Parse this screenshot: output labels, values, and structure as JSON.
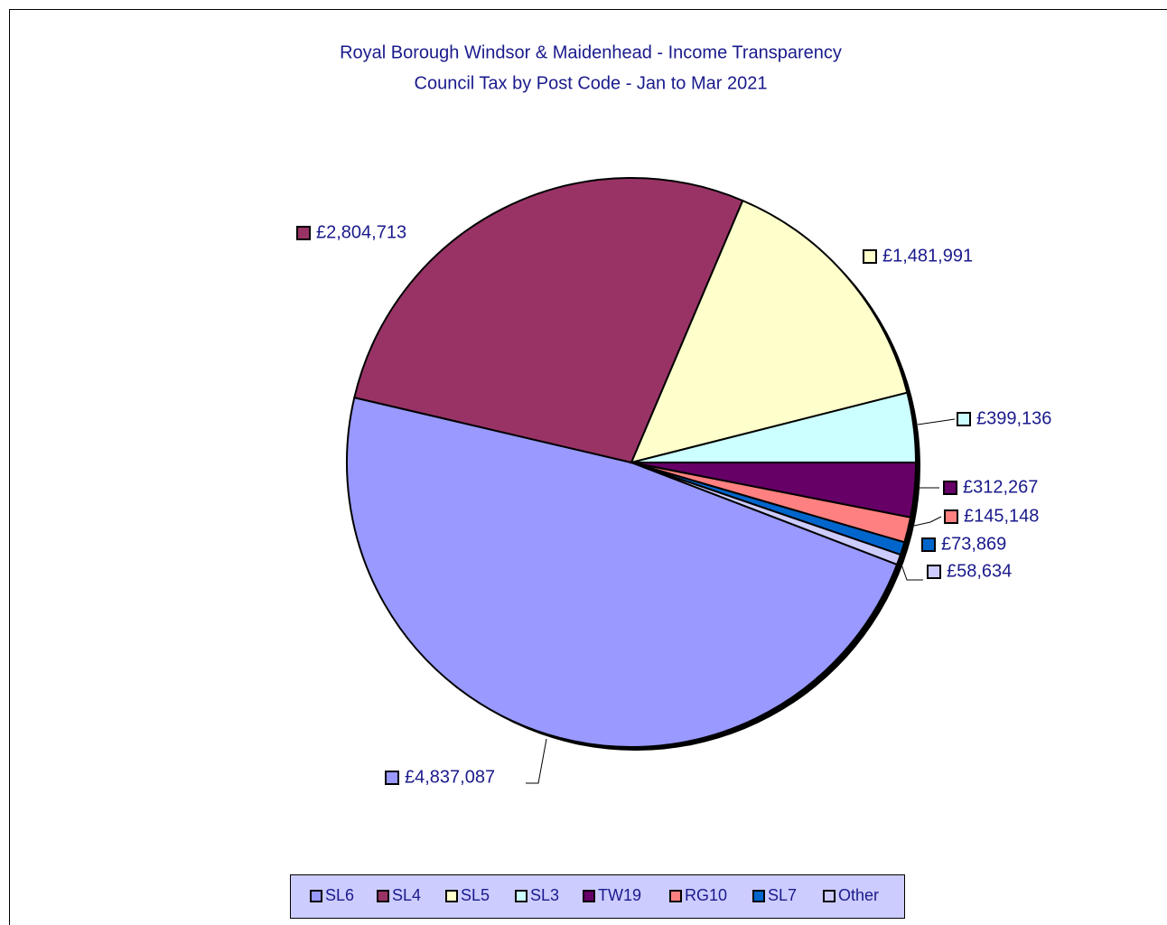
{
  "chart_data": {
    "type": "pie",
    "title": "Royal Borough Windsor & Maidenhead - Income Transparency",
    "subtitle": "Council Tax by Post Code - Jan to Mar 2021",
    "categories": [
      "SL6",
      "SL4",
      "SL5",
      "SL3",
      "TW19",
      "RG10",
      "SL7",
      "Other"
    ],
    "values": [
      4837087,
      2804713,
      1481991,
      399136,
      312267,
      145148,
      73869,
      58634
    ],
    "value_labels": [
      "£4,837,087",
      "£2,804,713",
      "£1,481,991",
      "£399,136",
      "£312,267",
      "£145,148",
      "£73,869",
      "£58,634"
    ],
    "colors": [
      "#9999ff",
      "#993366",
      "#ffffcc",
      "#ccffff",
      "#660066",
      "#ff8080",
      "#0066cc",
      "#ccccff"
    ],
    "legend": "bottom"
  }
}
